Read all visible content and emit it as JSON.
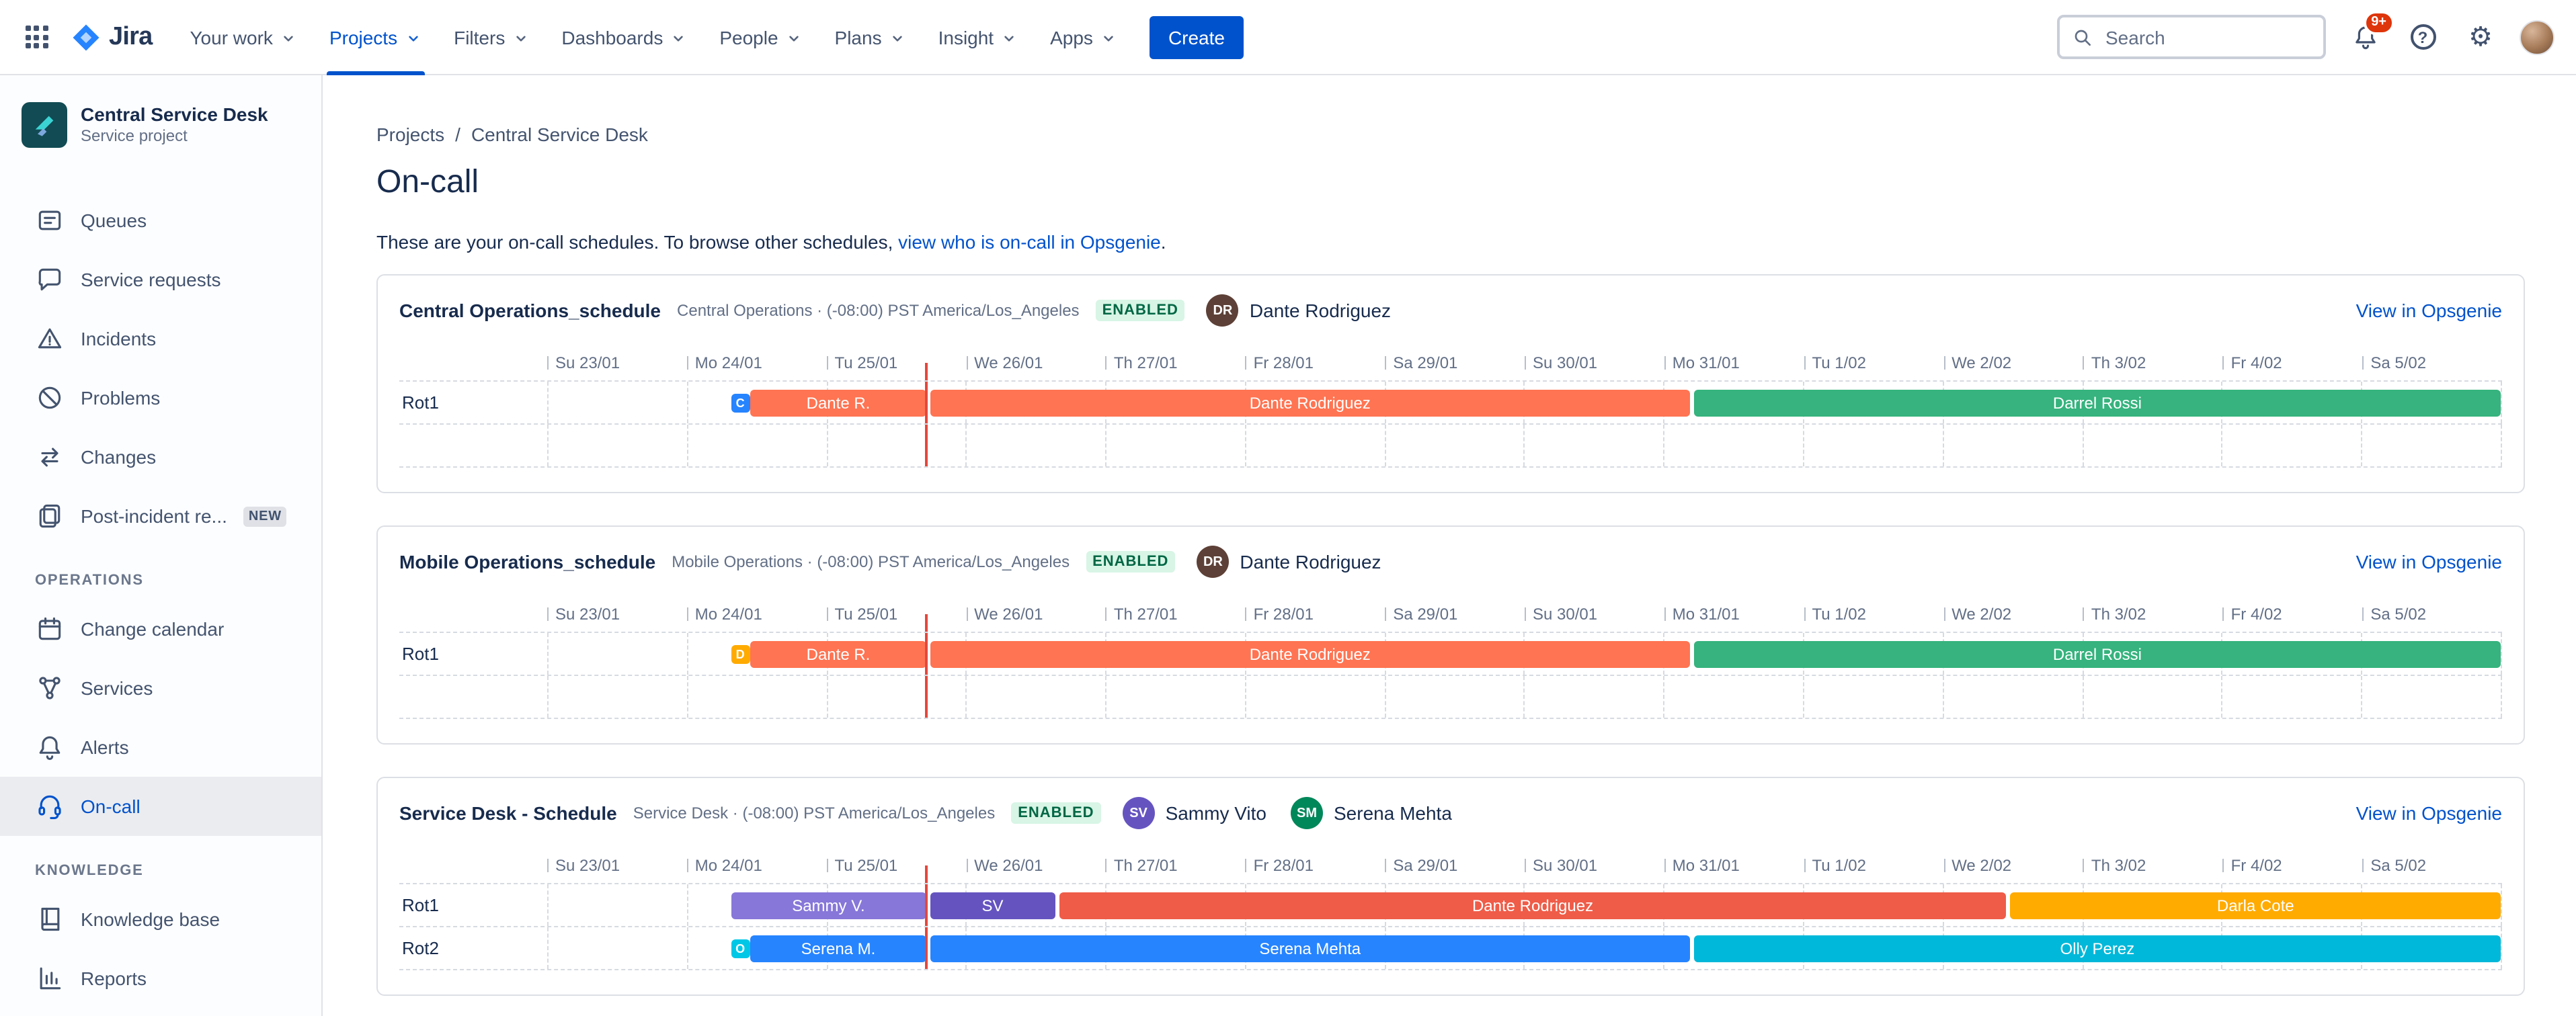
{
  "brand": {
    "name": "Jira"
  },
  "nav": {
    "items": [
      {
        "label": "Your work"
      },
      {
        "label": "Projects",
        "active": true
      },
      {
        "label": "Filters"
      },
      {
        "label": "Dashboards"
      },
      {
        "label": "People"
      },
      {
        "label": "Plans"
      },
      {
        "label": "Insight"
      },
      {
        "label": "Apps"
      }
    ],
    "create_label": "Create",
    "search_placeholder": "Search",
    "notification_badge": "9+",
    "help_glyph": "?"
  },
  "sidebar": {
    "project_name": "Central Service Desk",
    "project_type": "Service project",
    "groups": [
      {
        "heading": "",
        "items": [
          {
            "label": "Queues",
            "icon": "queues"
          },
          {
            "label": "Service requests",
            "icon": "requests"
          },
          {
            "label": "Incidents",
            "icon": "incidents"
          },
          {
            "label": "Problems",
            "icon": "problems"
          },
          {
            "label": "Changes",
            "icon": "changes"
          },
          {
            "label": "Post-incident re...",
            "icon": "post-incident",
            "badge": "NEW"
          }
        ]
      },
      {
        "heading": "OPERATIONS",
        "items": [
          {
            "label": "Change calendar",
            "icon": "calendar"
          },
          {
            "label": "Services",
            "icon": "services"
          },
          {
            "label": "Alerts",
            "icon": "alerts"
          },
          {
            "label": "On-call",
            "icon": "oncall",
            "active": true
          }
        ]
      },
      {
        "heading": "KNOWLEDGE",
        "items": [
          {
            "label": "Knowledge base",
            "icon": "book"
          },
          {
            "label": "Reports",
            "icon": "reports"
          }
        ]
      }
    ]
  },
  "main": {
    "breadcrumb": [
      "Projects",
      "Central Service Desk"
    ],
    "separator": "/",
    "title": "On-call",
    "description_prefix": "These are your on-call schedules. To browse other schedules, ",
    "description_link": "view who is on-call in Opsgenie",
    "description_suffix": "."
  },
  "timeline_dates": [
    "Su 23/01",
    "Mo 24/01",
    "Tu 25/01",
    "We 26/01",
    "Th 27/01",
    "Fr 28/01",
    "Sa 29/01",
    "Su 30/01",
    "Mo 31/01",
    "Tu 1/02",
    "We 2/02",
    "Th 3/02",
    "Fr 4/02",
    "Sa 5/02"
  ],
  "now_pct": 19.4,
  "schedules": [
    {
      "name": "Central Operations_schedule",
      "meta": "Central Operations · (-08:00) PST America/Los_Angeles",
      "status": "ENABLED",
      "users": [
        {
          "name": "Dante Rodriguez",
          "initials": "DR",
          "color": "#5D4037"
        }
      ],
      "link": "View in Opsgenie",
      "rows": [
        {
          "label": "Rot1",
          "chip": {
            "letter": "C",
            "color": "#2684FF",
            "pct": 9.4
          },
          "bars": [
            {
              "text": "Dante R.",
              "start": 10.4,
              "end": 19.4,
              "color": "#FF7452"
            },
            {
              "text": "Dante Rodriguez",
              "start": 19.6,
              "end": 58.5,
              "color": "#FF7452"
            },
            {
              "text": "Darrel Rossi",
              "start": 58.7,
              "end": 100,
              "color": "#36B37E"
            }
          ]
        },
        {
          "label": "",
          "bars": []
        }
      ]
    },
    {
      "name": "Mobile Operations_schedule",
      "meta": "Mobile Operations · (-08:00) PST America/Los_Angeles",
      "status": "ENABLED",
      "users": [
        {
          "name": "Dante Rodriguez",
          "initials": "DR",
          "color": "#5D4037"
        }
      ],
      "link": "View in Opsgenie",
      "rows": [
        {
          "label": "Rot1",
          "chip": {
            "letter": "D",
            "color": "#FFAB00",
            "pct": 9.4
          },
          "bars": [
            {
              "text": "Dante R.",
              "start": 10.4,
              "end": 19.4,
              "color": "#FF7452"
            },
            {
              "text": "Dante Rodriguez",
              "start": 19.6,
              "end": 58.5,
              "color": "#FF7452"
            },
            {
              "text": "Darrel Rossi",
              "start": 58.7,
              "end": 100,
              "color": "#36B37E"
            }
          ]
        },
        {
          "label": "",
          "bars": []
        }
      ]
    },
    {
      "name": "Service Desk - Schedule",
      "meta": "Service Desk · (-08:00) PST America/Los_Angeles",
      "status": "ENABLED",
      "users": [
        {
          "name": "Sammy Vito",
          "initials": "SV",
          "color": "#6554C0"
        },
        {
          "name": "Serena Mehta",
          "initials": "SM",
          "color": "#00875A"
        }
      ],
      "link": "View in Opsgenie",
      "rows": [
        {
          "label": "Rot1",
          "bars": [
            {
              "text": "Sammy V.",
              "start": 9.4,
              "end": 19.4,
              "color": "#8777D9"
            },
            {
              "text": "SV",
              "start": 19.6,
              "end": 26.0,
              "color": "#6554C0"
            },
            {
              "text": "Dante Rodriguez",
              "start": 26.2,
              "end": 74.7,
              "color": "#EF5C48"
            },
            {
              "text": "Darla Cote",
              "start": 74.9,
              "end": 100,
              "color": "#FFAB00"
            }
          ]
        },
        {
          "label": "Rot2",
          "chip": {
            "letter": "O",
            "color": "#00C7E6",
            "pct": 9.4
          },
          "bars": [
            {
              "text": "Serena M.",
              "start": 10.4,
              "end": 19.4,
              "color": "#2684FF"
            },
            {
              "text": "Serena Mehta",
              "start": 19.6,
              "end": 58.5,
              "color": "#2684FF"
            },
            {
              "text": "Olly Perez",
              "start": 58.7,
              "end": 100,
              "color": "#00B8D9"
            }
          ]
        }
      ]
    }
  ]
}
